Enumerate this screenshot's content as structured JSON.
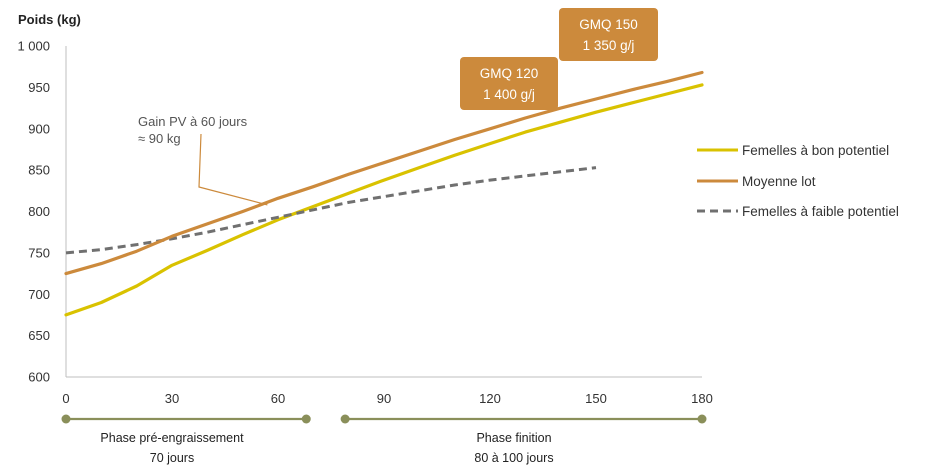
{
  "chart_data": {
    "type": "line",
    "ylabel": "Poids (kg)",
    "xlabel": "",
    "xlim": [
      0,
      180
    ],
    "ylim": [
      600,
      1000
    ],
    "x_ticks": [
      0,
      30,
      60,
      90,
      120,
      150,
      180
    ],
    "y_ticks": [
      600,
      650,
      700,
      750,
      800,
      850,
      900,
      950,
      1000
    ],
    "y_tick_labels": [
      "600",
      "650",
      "700",
      "750",
      "800",
      "850",
      "900",
      "950",
      "1 000"
    ],
    "grid": false,
    "legend_position": "right",
    "series": [
      {
        "name": "Femelles à bon potentiel",
        "color": "#d9c200",
        "style": "solid",
        "x": [
          0,
          10,
          20,
          30,
          40,
          50,
          60,
          70,
          80,
          90,
          100,
          110,
          120,
          130,
          140,
          150,
          160,
          170,
          180
        ],
        "y": [
          675,
          690,
          710,
          735,
          753,
          772,
          790,
          806,
          822,
          838,
          853,
          868,
          882,
          896,
          908,
          920,
          931,
          942,
          953
        ]
      },
      {
        "name": "Moyenne lot",
        "color": "#cc8a3c",
        "style": "solid",
        "x": [
          0,
          10,
          20,
          30,
          40,
          50,
          60,
          70,
          80,
          90,
          100,
          110,
          120,
          130,
          140,
          150,
          160,
          170,
          180
        ],
        "y": [
          725,
          737,
          752,
          770,
          785,
          800,
          816,
          830,
          845,
          859,
          873,
          887,
          900,
          913,
          925,
          936,
          947,
          957,
          968
        ]
      },
      {
        "name": "Femelles à faible potentiel",
        "color": "#707070",
        "style": "dashed",
        "x": [
          0,
          10,
          20,
          30,
          40,
          50,
          60,
          70,
          80,
          90,
          100,
          110,
          120,
          130,
          140,
          150
        ],
        "y": [
          750,
          754,
          760,
          767,
          775,
          784,
          793,
          802,
          811,
          818,
          825,
          832,
          838,
          843,
          848,
          853
        ]
      }
    ],
    "annotations": [
      {
        "id": "gain",
        "lines": [
          "Gain PV à 60 jours",
          "≈ 90 kg"
        ],
        "points_to": {
          "x": 57,
          "y": 808
        }
      },
      {
        "id": "gmq120",
        "lines": [
          "GMQ 120",
          "1 400 g/j"
        ],
        "color": "#cc8a3c"
      },
      {
        "id": "gmq150",
        "lines": [
          "GMQ 150",
          "1 350 g/j"
        ],
        "color": "#cc8a3c"
      }
    ],
    "phases": [
      {
        "lines": [
          "Phase pré-engraissement",
          "70 jours"
        ],
        "x_start": 0,
        "x_end": 68
      },
      {
        "lines": [
          "Phase finition",
          "80  à 100 jours"
        ],
        "x_start": 79,
        "x_end": 180
      }
    ],
    "phase_color": "#8a8f5a"
  }
}
